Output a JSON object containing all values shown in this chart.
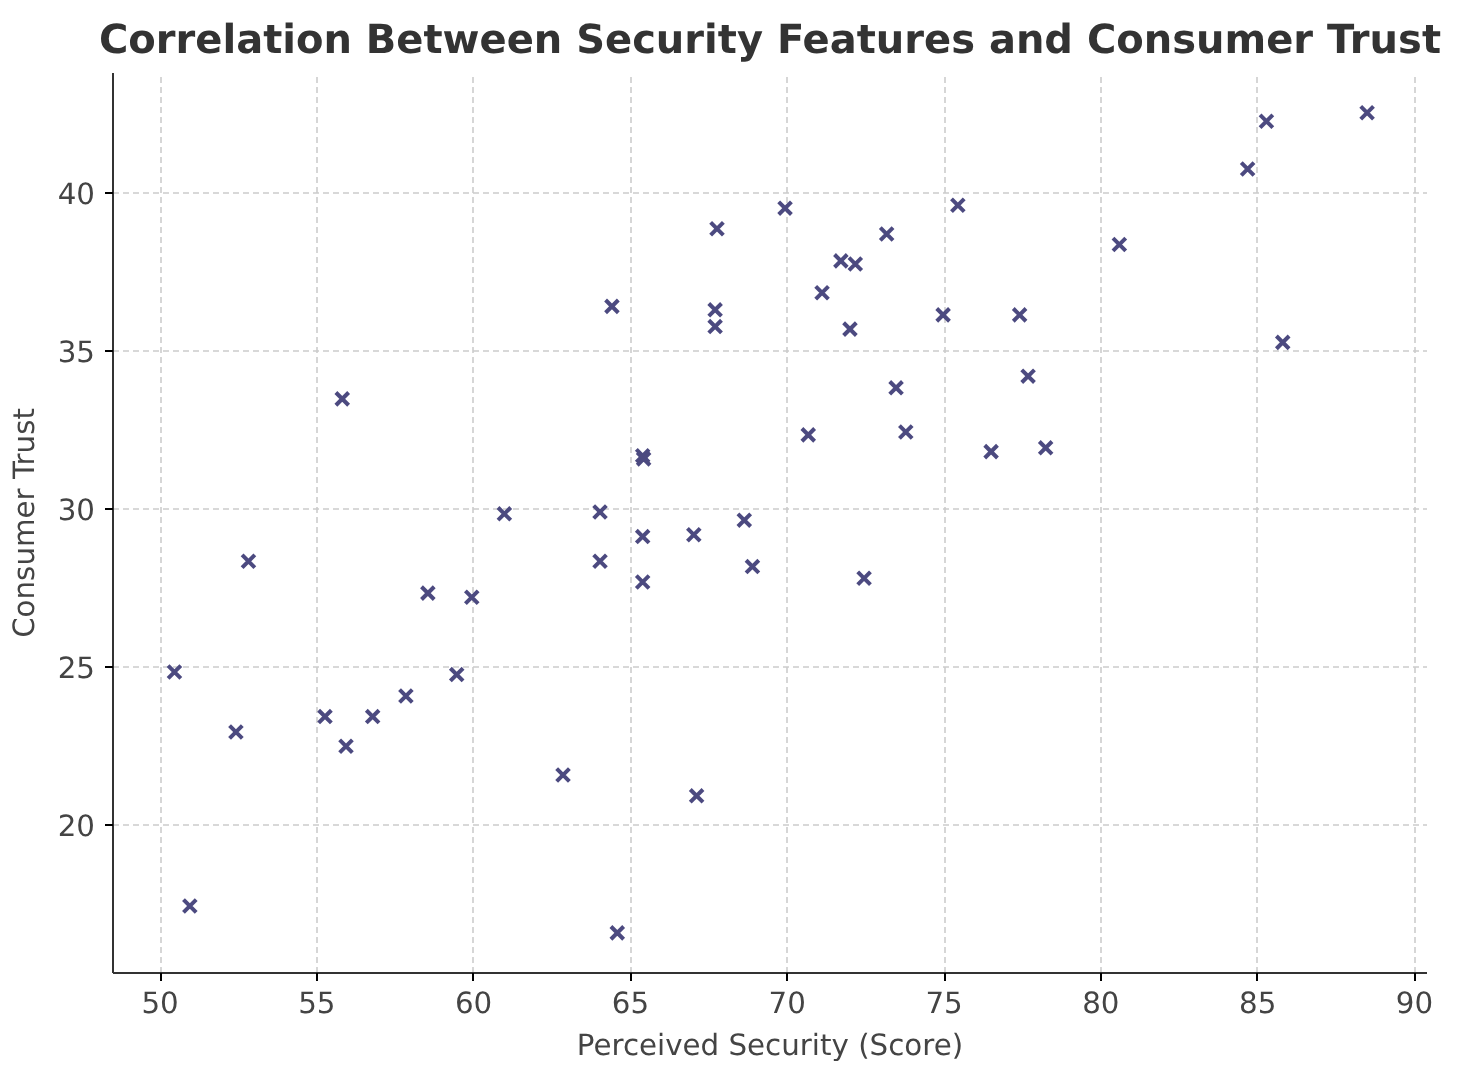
{
  "chart_data": {
    "type": "scatter",
    "title": "Correlation Between Security Features and Consumer Trust",
    "xlabel": "Perceived Security (Score)",
    "ylabel": "Consumer Trust",
    "xlim": [
      48.5,
      90.4
    ],
    "ylim": [
      15.3,
      43.8
    ],
    "xticks": [
      50,
      55,
      60,
      65,
      70,
      75,
      80,
      85,
      90
    ],
    "yticks": [
      20,
      25,
      30,
      35,
      40
    ],
    "grid": true,
    "marker": "cross",
    "series": [
      {
        "color": "#4c4a80",
        "x": [
          50.46,
          50.95,
          52.82,
          52.42,
          55.26,
          55.93,
          56.78,
          57.84,
          58.54,
          59.46,
          59.94,
          62.85,
          64.58,
          64.03,
          65.39,
          65.39,
          67.02,
          67.11,
          68.63,
          68.89,
          60.98,
          64.03,
          72.45,
          67.76,
          64.41,
          67.7,
          67.7,
          55.81,
          65.39,
          65.42,
          69.93,
          75.44,
          73.17,
          71.71,
          72.17,
          71.11,
          72.0,
          74.97,
          77.41,
          73.47,
          77.68,
          70.67,
          73.78,
          76.5,
          78.24,
          80.59,
          84.68,
          85.28,
          88.49,
          85.8
        ],
        "values": [
          24.83,
          17.42,
          28.34,
          22.93,
          23.42,
          22.48,
          23.42,
          24.07,
          27.33,
          24.75,
          27.2,
          21.57,
          16.57,
          28.34,
          29.12,
          27.68,
          29.18,
          20.91,
          29.64,
          28.17,
          29.84,
          29.9,
          27.8,
          38.87,
          36.41,
          36.3,
          35.77,
          33.48,
          31.68,
          31.58,
          39.52,
          39.61,
          38.7,
          37.85,
          37.75,
          36.84,
          35.69,
          36.14,
          36.14,
          33.83,
          34.2,
          32.34,
          32.43,
          31.81,
          31.93,
          38.37,
          40.76,
          42.27,
          42.54,
          35.27
        ]
      }
    ]
  }
}
